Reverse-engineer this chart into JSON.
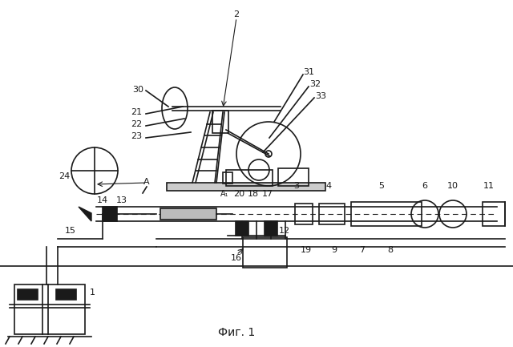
{
  "title": "Фиг. 1",
  "bg_color": "#ffffff",
  "line_color": "#1a1a1a",
  "figsize": [
    6.4,
    4.33
  ],
  "dpi": 100
}
